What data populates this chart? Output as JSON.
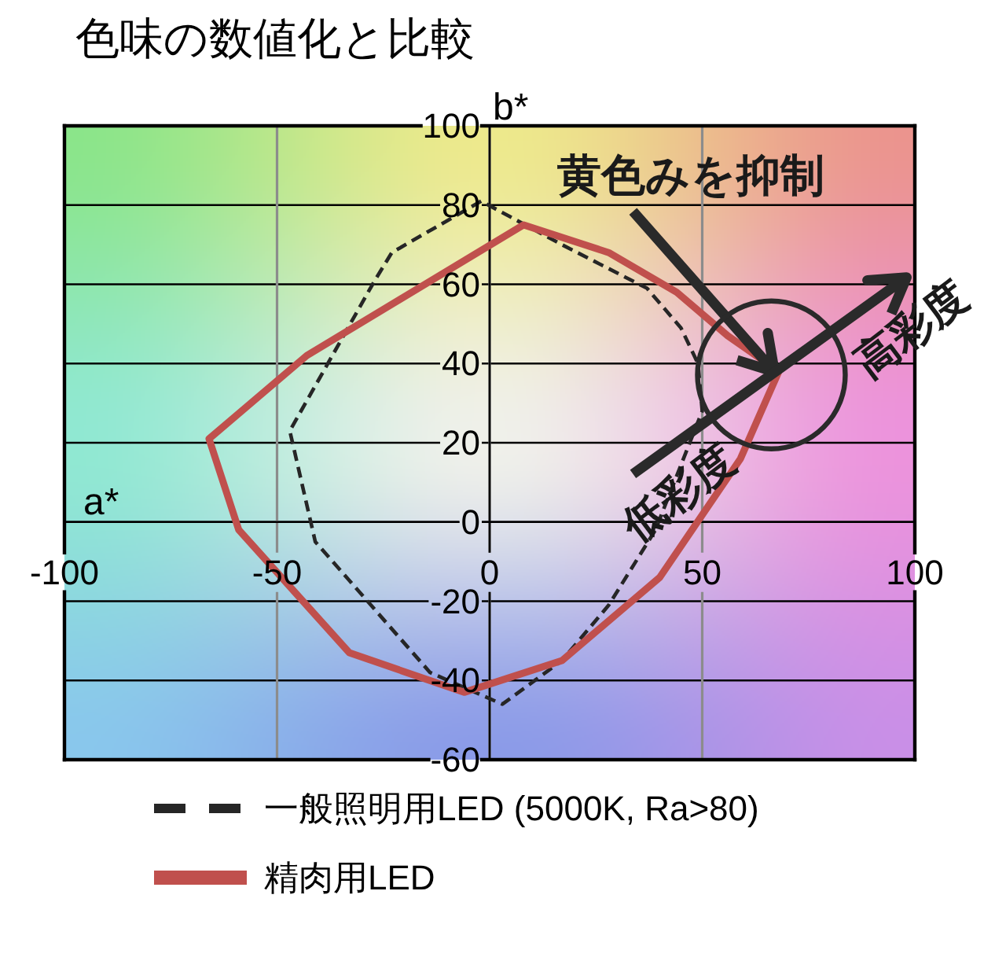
{
  "chart_data": {
    "type": "line",
    "title": "色味の数値化と比較",
    "xlabel": "a*",
    "ylabel": "b*",
    "xlim": [
      -100,
      100
    ],
    "xticks": [
      -100,
      -50,
      0,
      50,
      100
    ],
    "ylim": [
      -60,
      100
    ],
    "yticks": [
      -60,
      -40,
      -20,
      0,
      20,
      40,
      60,
      80,
      100
    ],
    "grid": true,
    "legend": "bottom",
    "series": [
      {
        "name": "一般照明用LED (5000K, Ra>80)",
        "color": "#262626",
        "line_style": "dashed",
        "x": [
          -2,
          -23,
          -27,
          -47,
          -41,
          -14,
          3,
          17,
          28,
          39,
          50,
          49,
          45,
          37,
          17,
          -2
        ],
        "values": [
          81,
          68,
          61,
          23,
          -5,
          -38,
          -46,
          -35,
          -21,
          -2,
          28,
          40,
          49,
          59,
          70,
          81
        ]
      },
      {
        "name": "精肉用LED",
        "color": "#c0504d",
        "line_style": "solid",
        "x": [
          -66,
          -43,
          8,
          28,
          44,
          56,
          68,
          59,
          40,
          17,
          -6,
          -33,
          -59,
          -66
        ],
        "values": [
          21,
          42,
          75,
          68,
          58,
          47,
          38,
          16,
          -14,
          -35,
          -43,
          -33,
          -2,
          21
        ]
      }
    ],
    "annotations": [
      "黄色みを抑制",
      "高彩度",
      "低彩度"
    ]
  }
}
